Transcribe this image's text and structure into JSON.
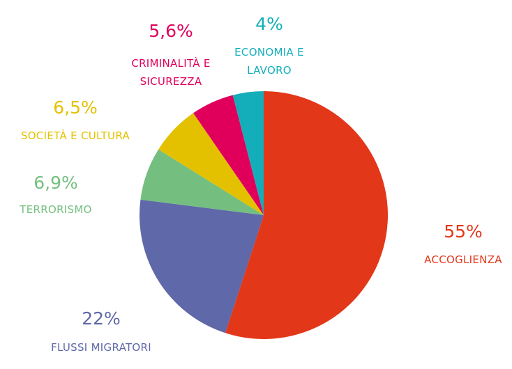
{
  "chart_data": {
    "type": "pie",
    "categories": [
      "ACCOGLIENZA",
      "FLUSSI MIGRATORI",
      "TERRORISMO",
      "SOCIETÀ E CULTURA",
      "CRIMINALITÀ E SICUREZZA",
      "ECONOMIA E LAVORO"
    ],
    "values": [
      55,
      22,
      6.9,
      6.5,
      5.6,
      4
    ],
    "value_labels": [
      "55%",
      "22%",
      "6,9%",
      "6,5%",
      "5,6%",
      "4%"
    ],
    "colors": [
      "#e3371a",
      "#5f68a8",
      "#74bf7f",
      "#e4c100",
      "#e0005c",
      "#13aeb9"
    ]
  }
}
